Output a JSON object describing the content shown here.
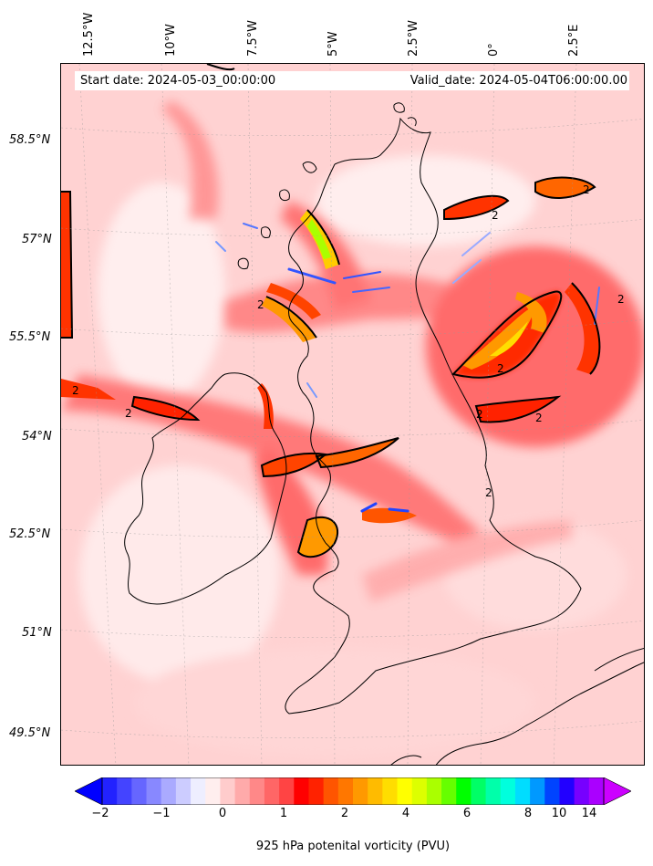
{
  "header": {
    "start_label": "Start date: 2024-05-03_00:00:00",
    "valid_label": "Valid_date: 2024-05-04T06:00:00.00"
  },
  "lon_labels": [
    "12.5°W",
    "10°W",
    "7.5°W",
    "5°W",
    "2.5°W",
    "0°",
    "2.5°E"
  ],
  "lat_labels": [
    "58.5°N",
    "57°N",
    "55.5°N",
    "54°N",
    "52.5°N",
    "51°N",
    "49.5°N"
  ],
  "colorbar": {
    "label": "925 hPa potenital vorticity (PVU)",
    "ticks": [
      "−2",
      "−1",
      "0",
      "1",
      "2",
      "4",
      "6",
      "8",
      "10",
      "14"
    ],
    "colors": [
      "#0000ff",
      "#2222ff",
      "#4444ff",
      "#6666ff",
      "#8888ff",
      "#aaaaff",
      "#ccccff",
      "#eeeeff",
      "#ffeeee",
      "#ffcccc",
      "#ffaaaa",
      "#ff8888",
      "#ff6666",
      "#ff4444",
      "#ff0000",
      "#ff2200",
      "#ff5500",
      "#ff7700",
      "#ff9900",
      "#ffbb00",
      "#ffdd00",
      "#ffff00",
      "#ddff00",
      "#aaff00",
      "#66ff00",
      "#00ff00",
      "#00ff66",
      "#00ffaa",
      "#00ffdd",
      "#00ddff",
      "#0099ff",
      "#0044ff",
      "#2200ff",
      "#7700ff",
      "#aa00ff",
      "#cc00ff"
    ]
  },
  "contour_label": "2",
  "colors": {
    "ocean": "#ffd0d0",
    "land": "#ffc6c6",
    "high_pv": "#ff3030",
    "peak_pv": "#ff9900"
  }
}
